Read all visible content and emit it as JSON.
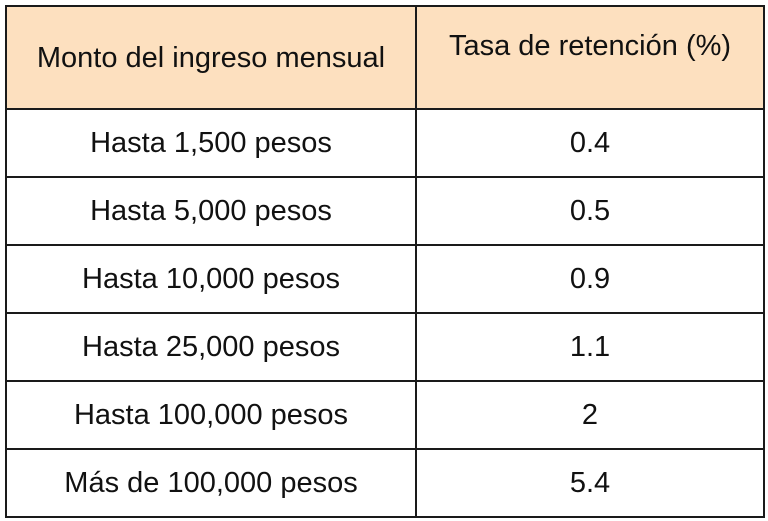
{
  "table": {
    "headers": [
      "Monto del ingreso mensual",
      "Tasa de retención (%)"
    ],
    "rows": [
      [
        "Hasta 1,500 pesos",
        "0.4"
      ],
      [
        "Hasta 5,000 pesos",
        "0.5"
      ],
      [
        "Hasta 10,000 pesos",
        "0.9"
      ],
      [
        "Hasta 25,000 pesos",
        "1.1"
      ],
      [
        "Hasta 100,000 pesos",
        "2"
      ],
      [
        "Más de 100,000 pesos",
        "5.4"
      ]
    ],
    "header_color": "#fde0bf",
    "border_color": "#1a1a1a"
  }
}
